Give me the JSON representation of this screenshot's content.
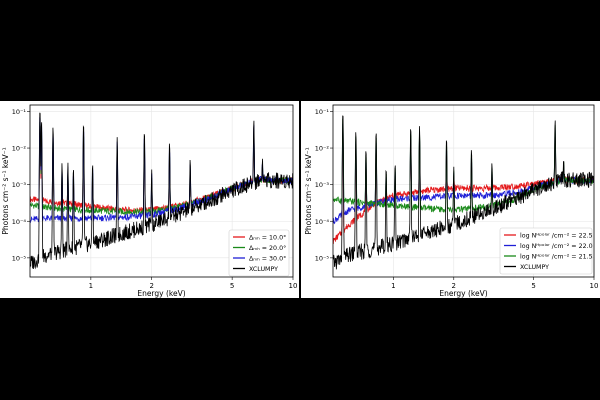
{
  "chart_data": [
    {
      "type": "line",
      "xlabel": "Energy (keV)",
      "ylabel": "Photons cm⁻² s⁻¹ keV⁻¹",
      "xscale": "log",
      "yscale": "log",
      "xlim": [
        0.5,
        10
      ],
      "ylim": [
        3e-06,
        0.15
      ],
      "xticks": [
        {
          "v": 1,
          "label": "1"
        },
        {
          "v": 2,
          "label": "2"
        },
        {
          "v": 5,
          "label": "5"
        },
        {
          "v": 10,
          "label": "10"
        }
      ],
      "yticks": [
        {
          "v": 1e-05,
          "label": "10⁻⁵"
        },
        {
          "v": 0.0001,
          "label": "10⁻⁴"
        },
        {
          "v": 0.001,
          "label": "10⁻³"
        },
        {
          "v": 0.01,
          "label": "10⁻²"
        },
        {
          "v": 0.1,
          "label": "10⁻¹"
        }
      ],
      "grid": true,
      "legend_position": "bottom-right",
      "series": [
        {
          "name": "Δₘₕ = 10.0°",
          "color": "#e41a1c",
          "x": [
            0.5,
            0.6,
            0.8,
            1.0,
            1.5,
            2.0,
            3.0,
            4.0,
            5.0,
            6.0,
            7.0,
            8.0,
            10.0
          ],
          "y": [
            0.0004,
            0.00035,
            0.0003,
            0.00025,
            0.0002,
            0.0002,
            0.0003,
            0.0005,
            0.0008,
            0.0011,
            0.0014,
            0.0013,
            0.0013
          ]
        },
        {
          "name": "Δₘₕ = 20.0°",
          "color": "#1a8a1a",
          "x": [
            0.5,
            0.6,
            0.8,
            1.0,
            1.5,
            2.0,
            3.0,
            4.0,
            5.0,
            6.0,
            7.0,
            8.0,
            10.0
          ],
          "y": [
            0.00028,
            0.00024,
            0.00021,
            0.0002,
            0.00018,
            0.00018,
            0.00028,
            0.00048,
            0.0008,
            0.0011,
            0.0014,
            0.0013,
            0.0013
          ]
        },
        {
          "name": "Δₘₕ = 30.0°",
          "color": "#1f1fd6",
          "x": [
            0.5,
            0.6,
            0.8,
            1.0,
            1.5,
            2.0,
            3.0,
            4.0,
            5.0,
            6.0,
            7.0,
            8.0,
            10.0
          ],
          "y": [
            0.00011,
            0.00012,
            0.00012,
            0.00012,
            0.00013,
            0.00015,
            0.00026,
            0.00045,
            0.00078,
            0.0011,
            0.0014,
            0.0013,
            0.0013
          ]
        },
        {
          "name": "XCLUMPY",
          "color": "#000000",
          "x": [
            0.5,
            0.6,
            0.8,
            1.0,
            1.5,
            2.0,
            3.0,
            4.0,
            5.0,
            6.0,
            7.0,
            8.0,
            10.0
          ],
          "y": [
            7e-06,
            1.2e-05,
            1.8e-05,
            2.5e-05,
            5e-05,
            8e-05,
            0.0002,
            0.0004,
            0.0007,
            0.001,
            0.0014,
            0.0013,
            0.0013
          ]
        }
      ],
      "emission_lines": [
        {
          "x": 0.56,
          "peak": 0.12
        },
        {
          "x": 0.57,
          "peak": 0.06
        },
        {
          "x": 0.65,
          "peak": 0.04
        },
        {
          "x": 0.72,
          "peak": 0.004
        },
        {
          "x": 0.77,
          "peak": 0.004
        },
        {
          "x": 0.82,
          "peak": 0.003
        },
        {
          "x": 0.92,
          "peak": 0.05
        },
        {
          "x": 1.02,
          "peak": 0.004
        },
        {
          "x": 1.35,
          "peak": 0.02
        },
        {
          "x": 1.84,
          "peak": 0.03
        },
        {
          "x": 2.0,
          "peak": 0.0025
        },
        {
          "x": 2.45,
          "peak": 0.015
        },
        {
          "x": 3.1,
          "peak": 0.005
        },
        {
          "x": 6.4,
          "peak": 0.06
        },
        {
          "x": 7.06,
          "peak": 0.004
        }
      ]
    },
    {
      "type": "line",
      "xlabel": "Energy (keV)",
      "ylabel": "Photons cm⁻² s⁻¹ keV⁻¹",
      "xscale": "log",
      "yscale": "log",
      "xlim": [
        0.5,
        10
      ],
      "ylim": [
        3e-06,
        0.15
      ],
      "xticks": [
        {
          "v": 1,
          "label": "1"
        },
        {
          "v": 2,
          "label": "2"
        },
        {
          "v": 5,
          "label": "5"
        },
        {
          "v": 10,
          "label": "10"
        }
      ],
      "yticks": [
        {
          "v": 1e-05,
          "label": "10⁻⁵"
        },
        {
          "v": 0.0001,
          "label": "10⁻⁴"
        },
        {
          "v": 0.001,
          "label": "10⁻³"
        },
        {
          "v": 0.01,
          "label": "10⁻²"
        },
        {
          "v": 0.1,
          "label": "10⁻¹"
        }
      ],
      "grid": true,
      "legend_position": "bottom-right",
      "series": [
        {
          "name": "log Nᴴᵖᵒˡᵃʳ /cm⁻² = 22.5",
          "color": "#e41a1c",
          "x": [
            0.5,
            0.6,
            0.8,
            1.0,
            1.5,
            2.0,
            3.0,
            4.0,
            5.0,
            6.0,
            7.0,
            8.0,
            10.0
          ],
          "y": [
            2.8e-05,
            8e-05,
            0.0003,
            0.0005,
            0.0007,
            0.0008,
            0.0008,
            0.0009,
            0.001,
            0.0012,
            0.0014,
            0.0013,
            0.0013
          ]
        },
        {
          "name": "log Nᴴᵖᵒˡᵃʳ /cm⁻² = 22.0",
          "color": "#1f1fd6",
          "x": [
            0.5,
            0.6,
            0.8,
            1.0,
            1.5,
            2.0,
            3.0,
            4.0,
            5.0,
            6.0,
            7.0,
            8.0,
            10.0
          ],
          "y": [
            0.0001,
            0.0002,
            0.0003,
            0.0004,
            0.00045,
            0.0005,
            0.0005,
            0.0006,
            0.0008,
            0.0011,
            0.0014,
            0.0013,
            0.0013
          ]
        },
        {
          "name": "log Nᴴᵖᵒˡᵃʳ /cm⁻² = 21.5",
          "color": "#1a8a1a",
          "x": [
            0.5,
            0.6,
            0.8,
            1.0,
            1.5,
            2.0,
            3.0,
            4.0,
            5.0,
            6.0,
            7.0,
            8.0,
            10.0
          ],
          "y": [
            0.0004,
            0.00035,
            0.0003,
            0.00028,
            0.00022,
            0.0002,
            0.00025,
            0.0004,
            0.0007,
            0.001,
            0.0014,
            0.0013,
            0.0013
          ]
        },
        {
          "name": "XCLUMPY",
          "color": "#000000",
          "x": [
            0.5,
            0.6,
            0.8,
            1.0,
            1.5,
            2.0,
            3.0,
            4.0,
            5.0,
            6.0,
            7.0,
            8.0,
            10.0
          ],
          "y": [
            7e-06,
            1.2e-05,
            1.8e-05,
            2.5e-05,
            5e-05,
            8e-05,
            0.0002,
            0.0004,
            0.0007,
            0.001,
            0.0014,
            0.0013,
            0.0013
          ]
        }
      ],
      "emission_lines": [
        {
          "x": 0.56,
          "peak": 0.1
        },
        {
          "x": 0.65,
          "peak": 0.03
        },
        {
          "x": 0.73,
          "peak": 0.01
        },
        {
          "x": 0.82,
          "peak": 0.03
        },
        {
          "x": 0.92,
          "peak": 0.003
        },
        {
          "x": 1.02,
          "peak": 0.004
        },
        {
          "x": 1.22,
          "peak": 0.04
        },
        {
          "x": 1.35,
          "peak": 0.04
        },
        {
          "x": 1.84,
          "peak": 0.02
        },
        {
          "x": 2.0,
          "peak": 0.003
        },
        {
          "x": 2.45,
          "peak": 0.01
        },
        {
          "x": 3.1,
          "peak": 0.004
        },
        {
          "x": 6.4,
          "peak": 0.06
        },
        {
          "x": 7.06,
          "peak": 0.004
        }
      ]
    }
  ]
}
